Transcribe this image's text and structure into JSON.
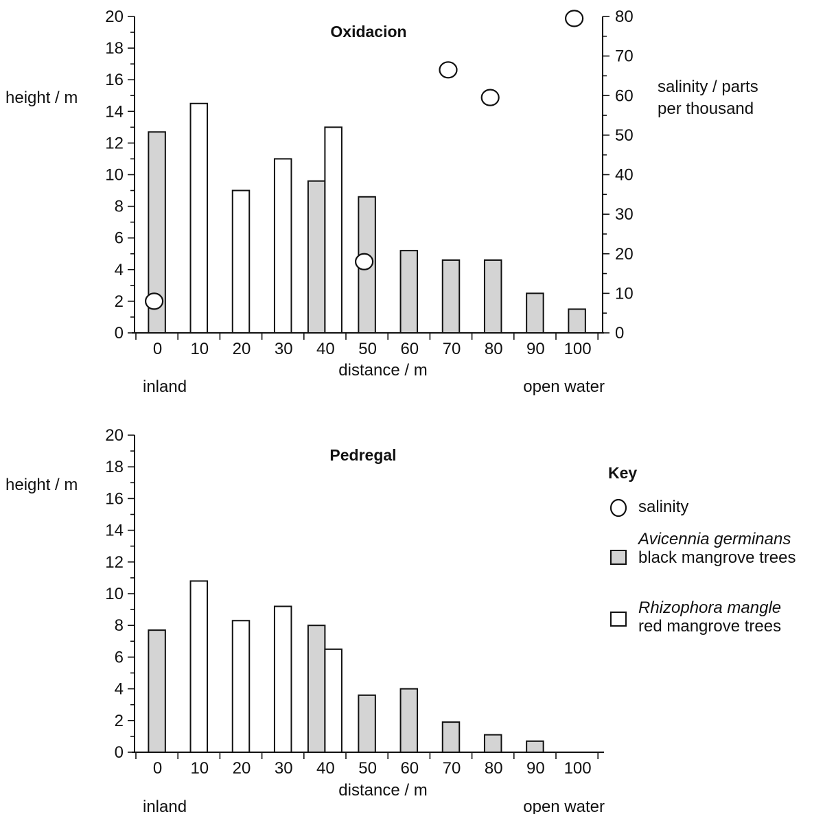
{
  "colors": {
    "avicennia_fill": "#d4d4d4",
    "rhizophora_fill": "#ffffff",
    "stroke": "#111111"
  },
  "key": {
    "title": "Key",
    "salinity_label": "salinity",
    "avicennia_species": "Avicennia germinans",
    "avicennia_common": "black mangrove trees",
    "rhizophora_species": "Rhizophora mangle",
    "rhizophora_common": "red mangrove trees"
  },
  "chart_data": [
    {
      "type": "bar",
      "title": "Oxidacion",
      "xlabel": "distance / m",
      "ylabel": "height / m",
      "y2label_line1": "salinity / parts",
      "y2label_line2": "per thousand",
      "x_left_label": "inland",
      "x_right_label": "open water",
      "categories": [
        "0",
        "10",
        "20",
        "30",
        "40",
        "50",
        "60",
        "70",
        "80",
        "90",
        "100"
      ],
      "ylim": [
        0,
        20
      ],
      "y2lim": [
        0,
        80
      ],
      "y_ticks": [
        "0",
        "2",
        "4",
        "6",
        "8",
        "10",
        "12",
        "14",
        "16",
        "18",
        "20"
      ],
      "y2_ticks": [
        "0",
        "10",
        "20",
        "30",
        "40",
        "50",
        "60",
        "70",
        "80"
      ],
      "series": [
        {
          "name": "Avicennia germinans black mangrove trees",
          "values": [
            12.7,
            null,
            null,
            null,
            9.6,
            8.6,
            5.2,
            4.6,
            4.6,
            2.5,
            1.5
          ]
        },
        {
          "name": "Rhizophora mangle red mangrove trees",
          "values": [
            null,
            14.5,
            9.0,
            11.0,
            13.0,
            null,
            null,
            null,
            null,
            null,
            null
          ]
        },
        {
          "name": "salinity",
          "axis": "right",
          "x": [
            0,
            50,
            70,
            80,
            100
          ],
          "values": [
            8,
            18,
            66.5,
            59.5,
            79.5
          ]
        }
      ]
    },
    {
      "type": "bar",
      "title": "Pedregal",
      "xlabel": "distance / m",
      "ylabel": "height / m",
      "x_left_label": "inland",
      "x_right_label": "open water",
      "categories": [
        "0",
        "10",
        "20",
        "30",
        "40",
        "50",
        "60",
        "70",
        "80",
        "90",
        "100"
      ],
      "ylim": [
        0,
        20
      ],
      "y_ticks": [
        "0",
        "2",
        "4",
        "6",
        "8",
        "10",
        "12",
        "14",
        "16",
        "18",
        "20"
      ],
      "series": [
        {
          "name": "Avicennia germinans black mangrove trees",
          "values": [
            7.7,
            null,
            null,
            null,
            8.0,
            3.6,
            4.0,
            1.9,
            1.1,
            0.7,
            null
          ]
        },
        {
          "name": "Rhizophora mangle red mangrove trees",
          "values": [
            null,
            10.8,
            8.3,
            9.2,
            6.5,
            null,
            null,
            null,
            null,
            null,
            null
          ]
        }
      ]
    }
  ]
}
